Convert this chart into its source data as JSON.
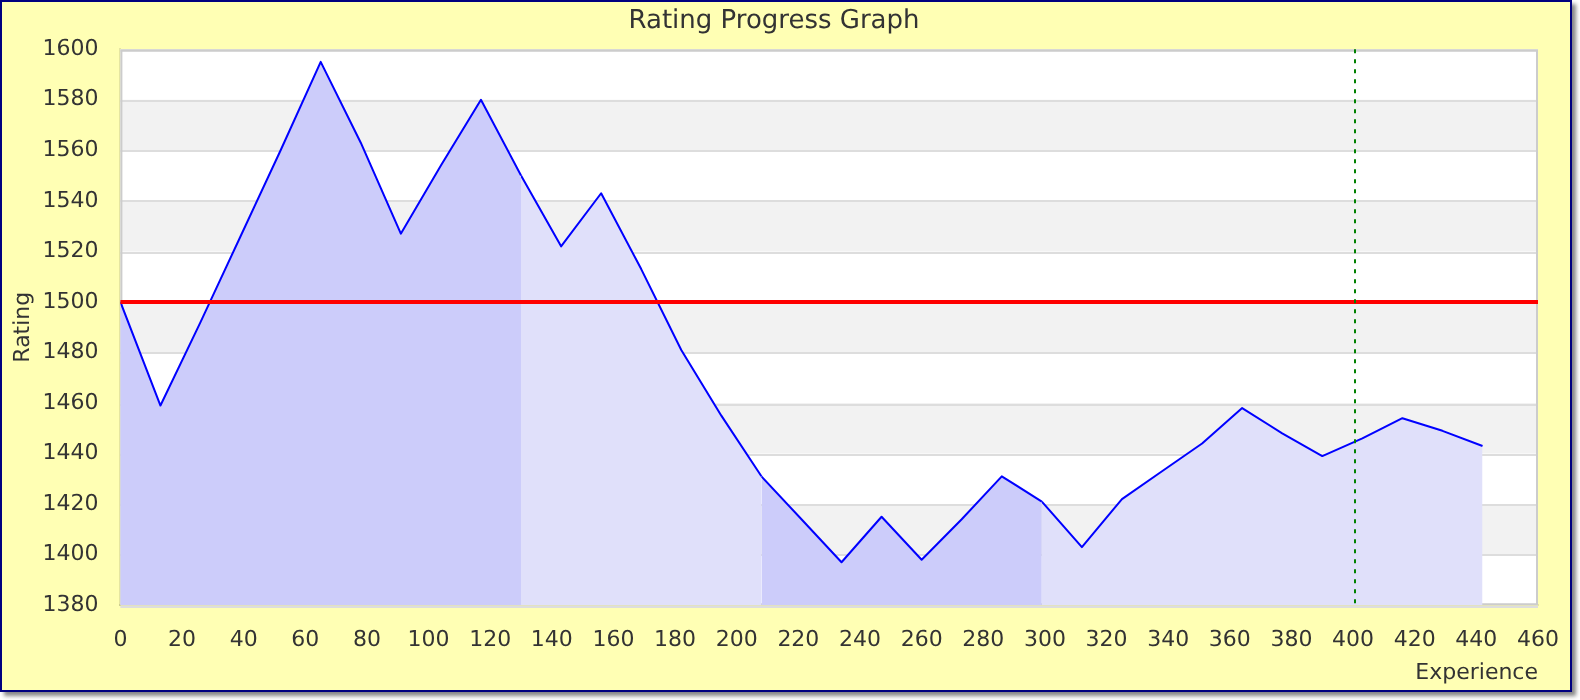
{
  "chart_data": {
    "type": "area",
    "title": "Rating Progress Graph",
    "xlabel": "Experience",
    "ylabel": "Rating",
    "series": [
      {
        "color": "#ccccfa",
        "x": [
          0,
          13,
          26,
          39,
          52,
          65,
          78,
          91,
          104,
          117,
          130
        ],
        "values": [
          1500,
          1459,
          1492,
          1526,
          1560,
          1595,
          1563,
          1527,
          1554,
          1580,
          1550
        ]
      },
      {
        "color": "#e0e0fa",
        "x": [
          130,
          143,
          156,
          169,
          182,
          195,
          208
        ],
        "values": [
          1550,
          1522,
          1543,
          1513,
          1481,
          1455,
          1431
        ]
      },
      {
        "color": "#ccccfa",
        "x": [
          208,
          221,
          234,
          247,
          260,
          273,
          286,
          299
        ],
        "values": [
          1431,
          1414,
          1397,
          1415,
          1398,
          1414,
          1431,
          1421
        ]
      },
      {
        "color": "#e0e0fa",
        "x": [
          299,
          312,
          325,
          338,
          351,
          364,
          377,
          390,
          403,
          416,
          429,
          442
        ],
        "values": [
          1421,
          1403,
          1422,
          1433,
          1444,
          1458,
          1448,
          1439,
          1446,
          1454,
          1449,
          1443
        ]
      }
    ],
    "xlim": [
      0,
      460
    ],
    "xticks": [
      0,
      20,
      40,
      60,
      80,
      100,
      120,
      140,
      160,
      180,
      200,
      220,
      240,
      260,
      280,
      300,
      320,
      340,
      360,
      380,
      400,
      420,
      440,
      460
    ],
    "ylim": [
      1380,
      1600
    ],
    "yticks": [
      1380,
      1400,
      1420,
      1440,
      1460,
      1480,
      1500,
      1520,
      1540,
      1560,
      1580,
      1600
    ],
    "ref_lines": [
      {
        "axis": "y",
        "value": 1500,
        "color": "#ff0000",
        "line_style": "solid"
      },
      {
        "axis": "x",
        "value": 400,
        "color": "#008000",
        "line_style": "dotted"
      }
    ],
    "grid": "y",
    "legend": false,
    "marker": "none",
    "line_style": "solid"
  }
}
